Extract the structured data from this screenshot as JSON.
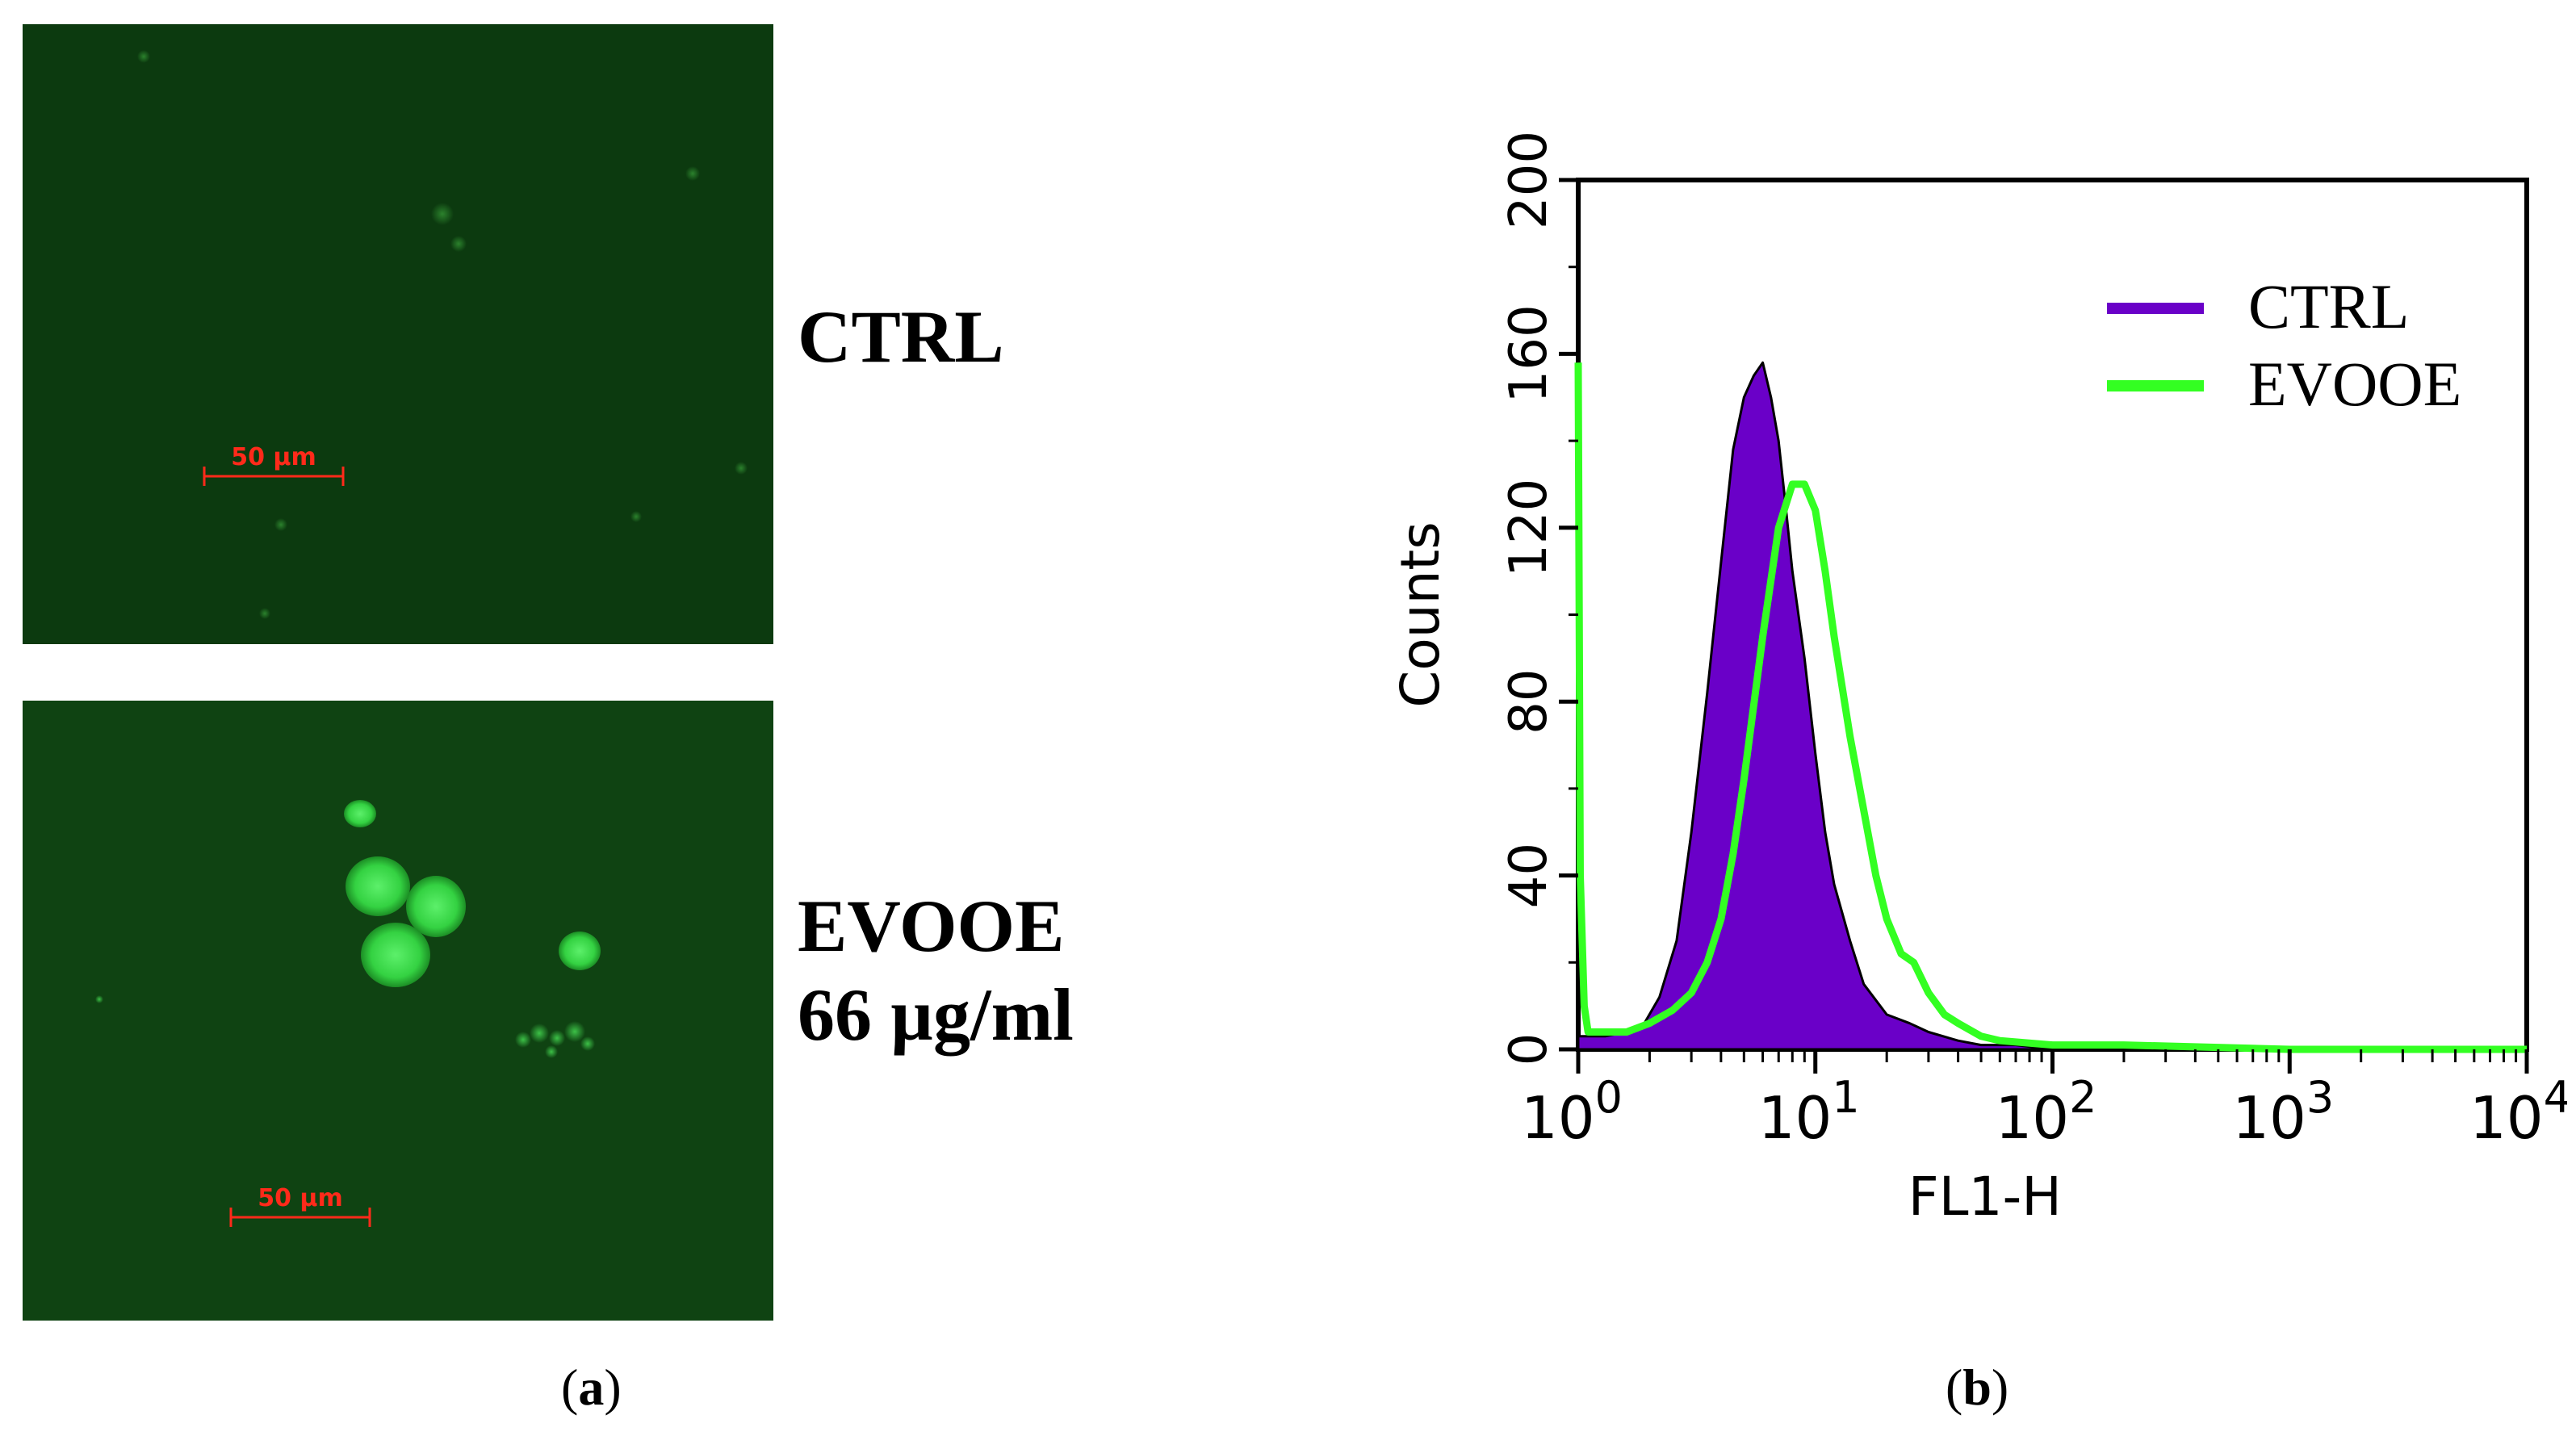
{
  "panels": {
    "a": {
      "label_open": "(",
      "letter": "a",
      "label_close": ")",
      "images": [
        {
          "condition": "CTRL",
          "condition_line2": "",
          "scale_bar_text": "50 µm"
        },
        {
          "condition": "EVOOE",
          "condition_line2": "66 µg/ml",
          "scale_bar_text": "50 µm"
        }
      ]
    },
    "b": {
      "label_open": "(",
      "letter": "b",
      "label_close": ")"
    }
  },
  "colors": {
    "micro_bg": "#0d3d10",
    "cell_glow": "#3ddc4c",
    "scale_bar": "#ff2a1a",
    "ctrl": "#6a00c8",
    "evooe": "#33ff22"
  },
  "chart_data": {
    "type": "histogram",
    "xlabel": "FL1-H",
    "ylabel": "Counts",
    "xscale": "log",
    "xlim": [
      1,
      10000
    ],
    "ylim": [
      0,
      200
    ],
    "yticks": [
      0,
      40,
      80,
      120,
      160,
      200
    ],
    "xticks": [
      {
        "base": "10",
        "exp": "0",
        "value": 1
      },
      {
        "base": "10",
        "exp": "1",
        "value": 10
      },
      {
        "base": "10",
        "exp": "2",
        "value": 100
      },
      {
        "base": "10",
        "exp": "3",
        "value": 1000
      },
      {
        "base": "10",
        "exp": "4",
        "value": 10000
      }
    ],
    "legend_position": "top-right",
    "series": [
      {
        "name": "CTRL",
        "style": "filled",
        "x": [
          1,
          1.3,
          1.6,
          1.9,
          2.2,
          2.6,
          3,
          3.5,
          4,
          4.5,
          5,
          5.5,
          6,
          6.5,
          7,
          7.5,
          8,
          9,
          10,
          11,
          12,
          14,
          16,
          20,
          25,
          30,
          40,
          50,
          70,
          100,
          200,
          1000,
          10000
        ],
        "y": [
          3,
          3,
          4,
          6,
          12,
          25,
          50,
          82,
          112,
          138,
          150,
          155,
          158,
          150,
          140,
          125,
          110,
          90,
          68,
          50,
          38,
          25,
          15,
          8,
          6,
          4,
          2,
          1,
          1,
          0,
          0,
          0,
          0
        ]
      },
      {
        "name": "EVOOE",
        "style": "line",
        "x": [
          1,
          1.02,
          1.06,
          1.1,
          1.3,
          1.6,
          2,
          2.5,
          3,
          3.5,
          4,
          4.5,
          5,
          6,
          7,
          8,
          9,
          10,
          11,
          12,
          14,
          16,
          18,
          20,
          23,
          26,
          30,
          35,
          40,
          50,
          60,
          100,
          200,
          1000,
          10000
        ],
        "y": [
          158,
          40,
          10,
          4,
          4,
          4,
          6,
          9,
          13,
          20,
          30,
          45,
          62,
          95,
          120,
          130,
          130,
          124,
          110,
          95,
          72,
          55,
          40,
          30,
          22,
          20,
          13,
          8,
          6,
          3,
          2,
          1,
          1,
          0,
          0
        ]
      }
    ]
  }
}
